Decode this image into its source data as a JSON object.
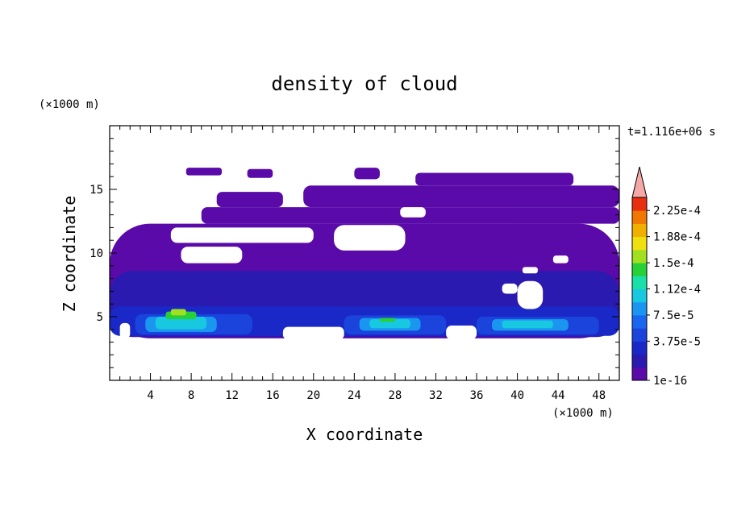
{
  "chart_data": {
    "type": "heatmap",
    "title": "density of cloud",
    "xlabel": "X coordinate",
    "ylabel": "Z coordinate",
    "x_unit": "(×1000 m)",
    "y_unit": "(×1000 m)",
    "time_label": "t=1.116e+06 s",
    "xlim": [
      0,
      50
    ],
    "ylim": [
      0,
      20
    ],
    "x_ticks": [
      4,
      8,
      12,
      16,
      20,
      24,
      28,
      32,
      36,
      40,
      44,
      48
    ],
    "y_ticks": [
      5,
      10,
      15
    ],
    "colorbar": {
      "labels": [
        "2.25e-4",
        "1.88e-4",
        "1.5e-4",
        "1.12e-4",
        "7.5e-5",
        "3.75e-5",
        "1e-16"
      ],
      "levels": [
        1e-16,
        1.875e-05,
        3.75e-05,
        5.625e-05,
        7.5e-05,
        9.375e-05,
        0.0001125,
        0.00013125,
        0.00015,
        0.00016875,
        0.0001875,
        0.00020625,
        0.000225,
        0.00024375
      ],
      "colors": [
        "#5a0aa8",
        "#2a1ab0",
        "#1a28c8",
        "#1a44dc",
        "#1a66f0",
        "#1a96f0",
        "#18c8e0",
        "#18e0a8",
        "#28d038",
        "#a0e020",
        "#f0e010",
        "#f0b000",
        "#f07800",
        "#e83010"
      ],
      "overflow_color": "#f4a8a8"
    },
    "regions": [
      {
        "level": 0,
        "x0": 0,
        "x1": 50,
        "z0": 3.3,
        "z1": 12.3
      },
      {
        "level": 0,
        "x0": 9,
        "x1": 50,
        "z0": 12.3,
        "z1": 13.6
      },
      {
        "level": 0,
        "x0": 10.5,
        "x1": 17,
        "z0": 13.6,
        "z1": 14.8
      },
      {
        "level": 0,
        "x0": 19,
        "x1": 50,
        "z0": 13.6,
        "z1": 15.3
      },
      {
        "level": 0,
        "x0": 7.5,
        "x1": 11,
        "z0": 16.1,
        "z1": 16.7
      },
      {
        "level": 0,
        "x0": 13.5,
        "x1": 16,
        "z0": 15.9,
        "z1": 16.6
      },
      {
        "level": 0,
        "x0": 24,
        "x1": 26.5,
        "z0": 15.8,
        "z1": 16.7
      },
      {
        "level": 0,
        "x0": 30,
        "x1": 45.5,
        "z0": 15.3,
        "z1": 16.3
      },
      {
        "level": 1,
        "x0": 0,
        "x1": 50,
        "z0": 3.4,
        "z1": 8.6
      },
      {
        "level": 2,
        "x0": 0,
        "x1": 50,
        "z0": 3.5,
        "z1": 5.8
      },
      {
        "level": 3,
        "x0": 2.5,
        "x1": 14,
        "z0": 3.6,
        "z1": 5.2
      },
      {
        "level": 3,
        "x0": 23,
        "x1": 33,
        "z0": 3.6,
        "z1": 5.1
      },
      {
        "level": 3,
        "x0": 36,
        "x1": 48,
        "z0": 3.6,
        "z1": 5.0
      },
      {
        "level": 5,
        "x0": 3.5,
        "x1": 10.5,
        "z0": 3.8,
        "z1": 5.0
      },
      {
        "level": 5,
        "x0": 24.5,
        "x1": 30.5,
        "z0": 3.9,
        "z1": 4.9
      },
      {
        "level": 5,
        "x0": 37.5,
        "x1": 45,
        "z0": 3.9,
        "z1": 4.8
      },
      {
        "level": 6,
        "x0": 4.5,
        "x1": 9.5,
        "z0": 4.0,
        "z1": 5.0
      },
      {
        "level": 6,
        "x0": 25.5,
        "x1": 29.5,
        "z0": 4.1,
        "z1": 4.8
      },
      {
        "level": 6,
        "x0": 38.5,
        "x1": 43.5,
        "z0": 4.1,
        "z1": 4.7
      },
      {
        "level": 8,
        "x0": 5.5,
        "x1": 8.5,
        "z0": 4.8,
        "z1": 5.4
      },
      {
        "level": 8,
        "x0": 26.5,
        "x1": 28,
        "z0": 4.6,
        "z1": 4.9
      },
      {
        "level": 9,
        "x0": 6,
        "x1": 7.5,
        "z0": 5.1,
        "z1": 5.6
      }
    ],
    "gaps": [
      {
        "x0": 6,
        "x1": 20,
        "z0": 10.8,
        "z1": 12.0
      },
      {
        "x0": 7,
        "x1": 13,
        "z0": 9.2,
        "z1": 10.5
      },
      {
        "x0": 22,
        "x1": 29,
        "z0": 10.2,
        "z1": 12.2
      },
      {
        "x0": 28.5,
        "x1": 31,
        "z0": 12.8,
        "z1": 13.6
      },
      {
        "x0": 40,
        "x1": 42.5,
        "z0": 5.6,
        "z1": 7.8
      },
      {
        "x0": 38.5,
        "x1": 40,
        "z0": 6.8,
        "z1": 7.6
      },
      {
        "x0": 40.5,
        "x1": 42,
        "z0": 8.4,
        "z1": 8.9
      },
      {
        "x0": 43.5,
        "x1": 45,
        "z0": 9.2,
        "z1": 9.8
      },
      {
        "x0": 1,
        "x1": 2,
        "z0": 3.3,
        "z1": 4.5
      },
      {
        "x0": 17,
        "x1": 23,
        "z0": 3.2,
        "z1": 4.2
      },
      {
        "x0": 33,
        "x1": 36,
        "z0": 3.2,
        "z1": 4.3
      }
    ]
  }
}
